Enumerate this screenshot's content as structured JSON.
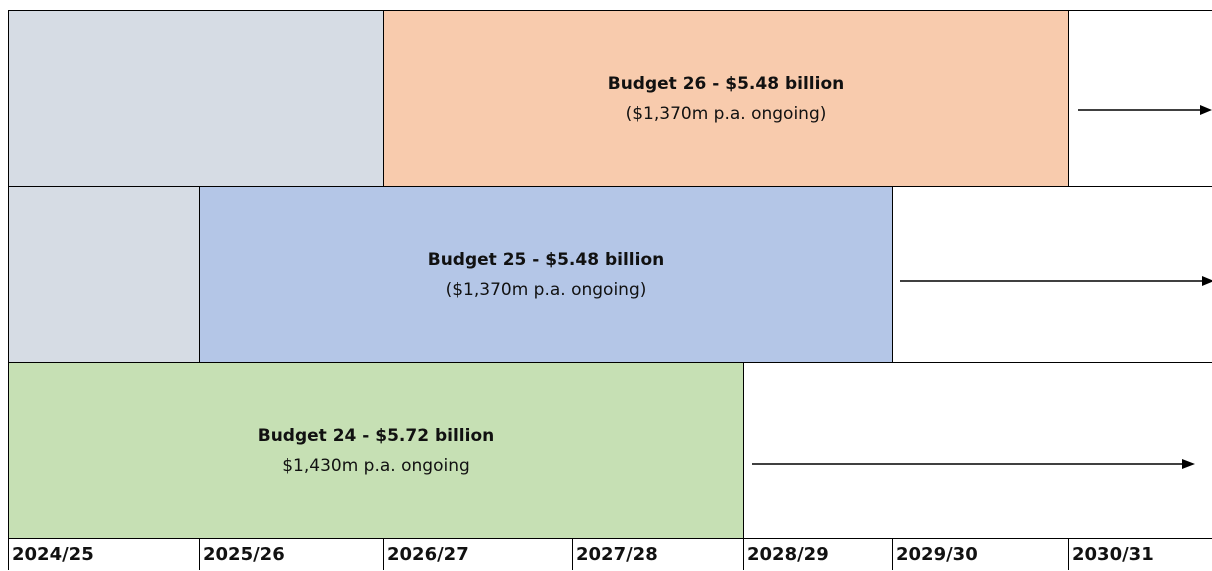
{
  "years": [
    "2024/25",
    "2025/26",
    "2026/27",
    "2027/28",
    "2028/29",
    "2029/30",
    "2030/31"
  ],
  "budgets": [
    {
      "title": "Budget 26 - $5.48 billion",
      "subtitle": "($1,370m p.a. ongoing)"
    },
    {
      "title": "Budget 25 - $5.48 billion",
      "subtitle": "($1,370m p.a. ongoing)"
    },
    {
      "title": "Budget 24 - $5.72 billion",
      "subtitle": "$1,430m p.a. ongoing"
    }
  ]
}
